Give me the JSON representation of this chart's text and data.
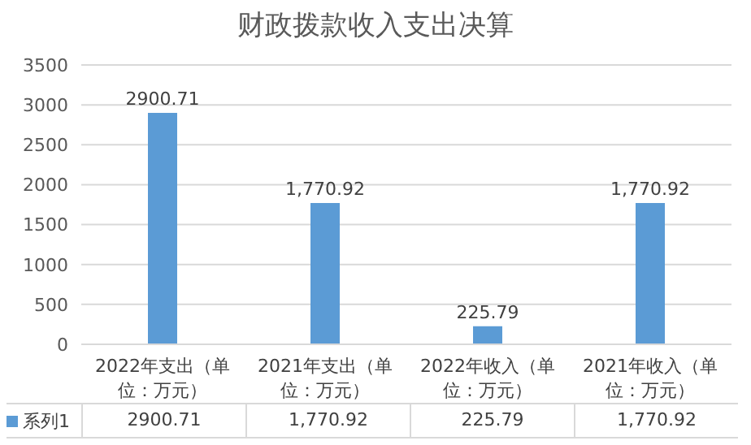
{
  "chart_data": {
    "type": "bar",
    "title": "财政拨款收入支出决算",
    "categories": [
      "2022年支出（单位：万元）",
      "2021年支出（单位：万元）",
      "2022年收入（单位：万元）",
      "2021年收入（单位：万元）"
    ],
    "series": [
      {
        "name": "系列1",
        "color": "#5b9bd5",
        "values": [
          2900.71,
          1770.92,
          225.79,
          1770.92
        ],
        "value_labels": [
          "2900.71",
          "1,770.92",
          "225.79",
          "1,770.92"
        ]
      }
    ],
    "ylim": [
      0,
      3500
    ],
    "yticks": [
      0,
      500,
      1000,
      1500,
      2000,
      2500,
      3000,
      3500
    ],
    "grid": "y",
    "legend": "bottom"
  }
}
